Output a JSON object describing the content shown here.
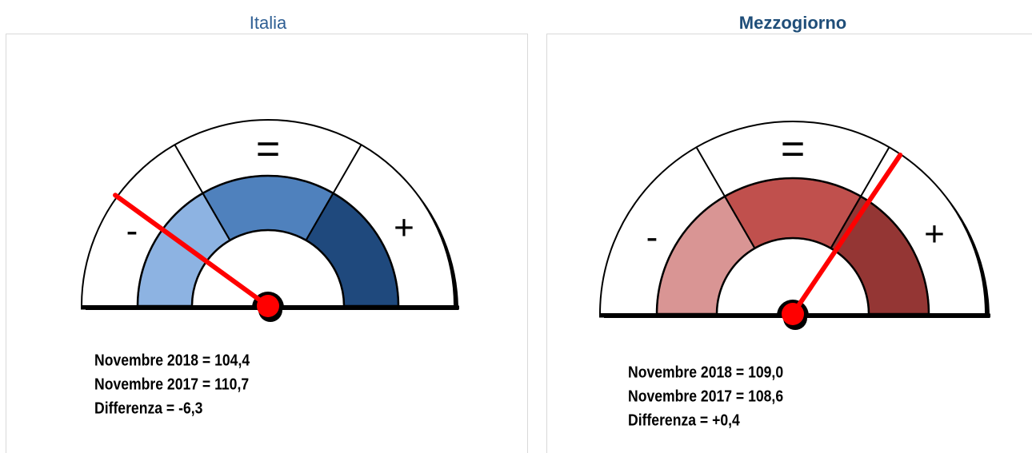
{
  "panels": [
    {
      "title": "Italia",
      "symbols": [
        "-",
        "=",
        "+"
      ],
      "lines": [
        "Novembre 2018 = 104,4",
        "Novembre 2017 = 110,7",
        "Differenza = -6,3"
      ]
    },
    {
      "title": "Mezzogiorno",
      "symbols": [
        "-",
        "=",
        "+"
      ],
      "lines": [
        "Novembre 2018 = 109,0",
        "Novembre 2017 = 108,6",
        "Differenza = +0,4"
      ]
    }
  ]
}
